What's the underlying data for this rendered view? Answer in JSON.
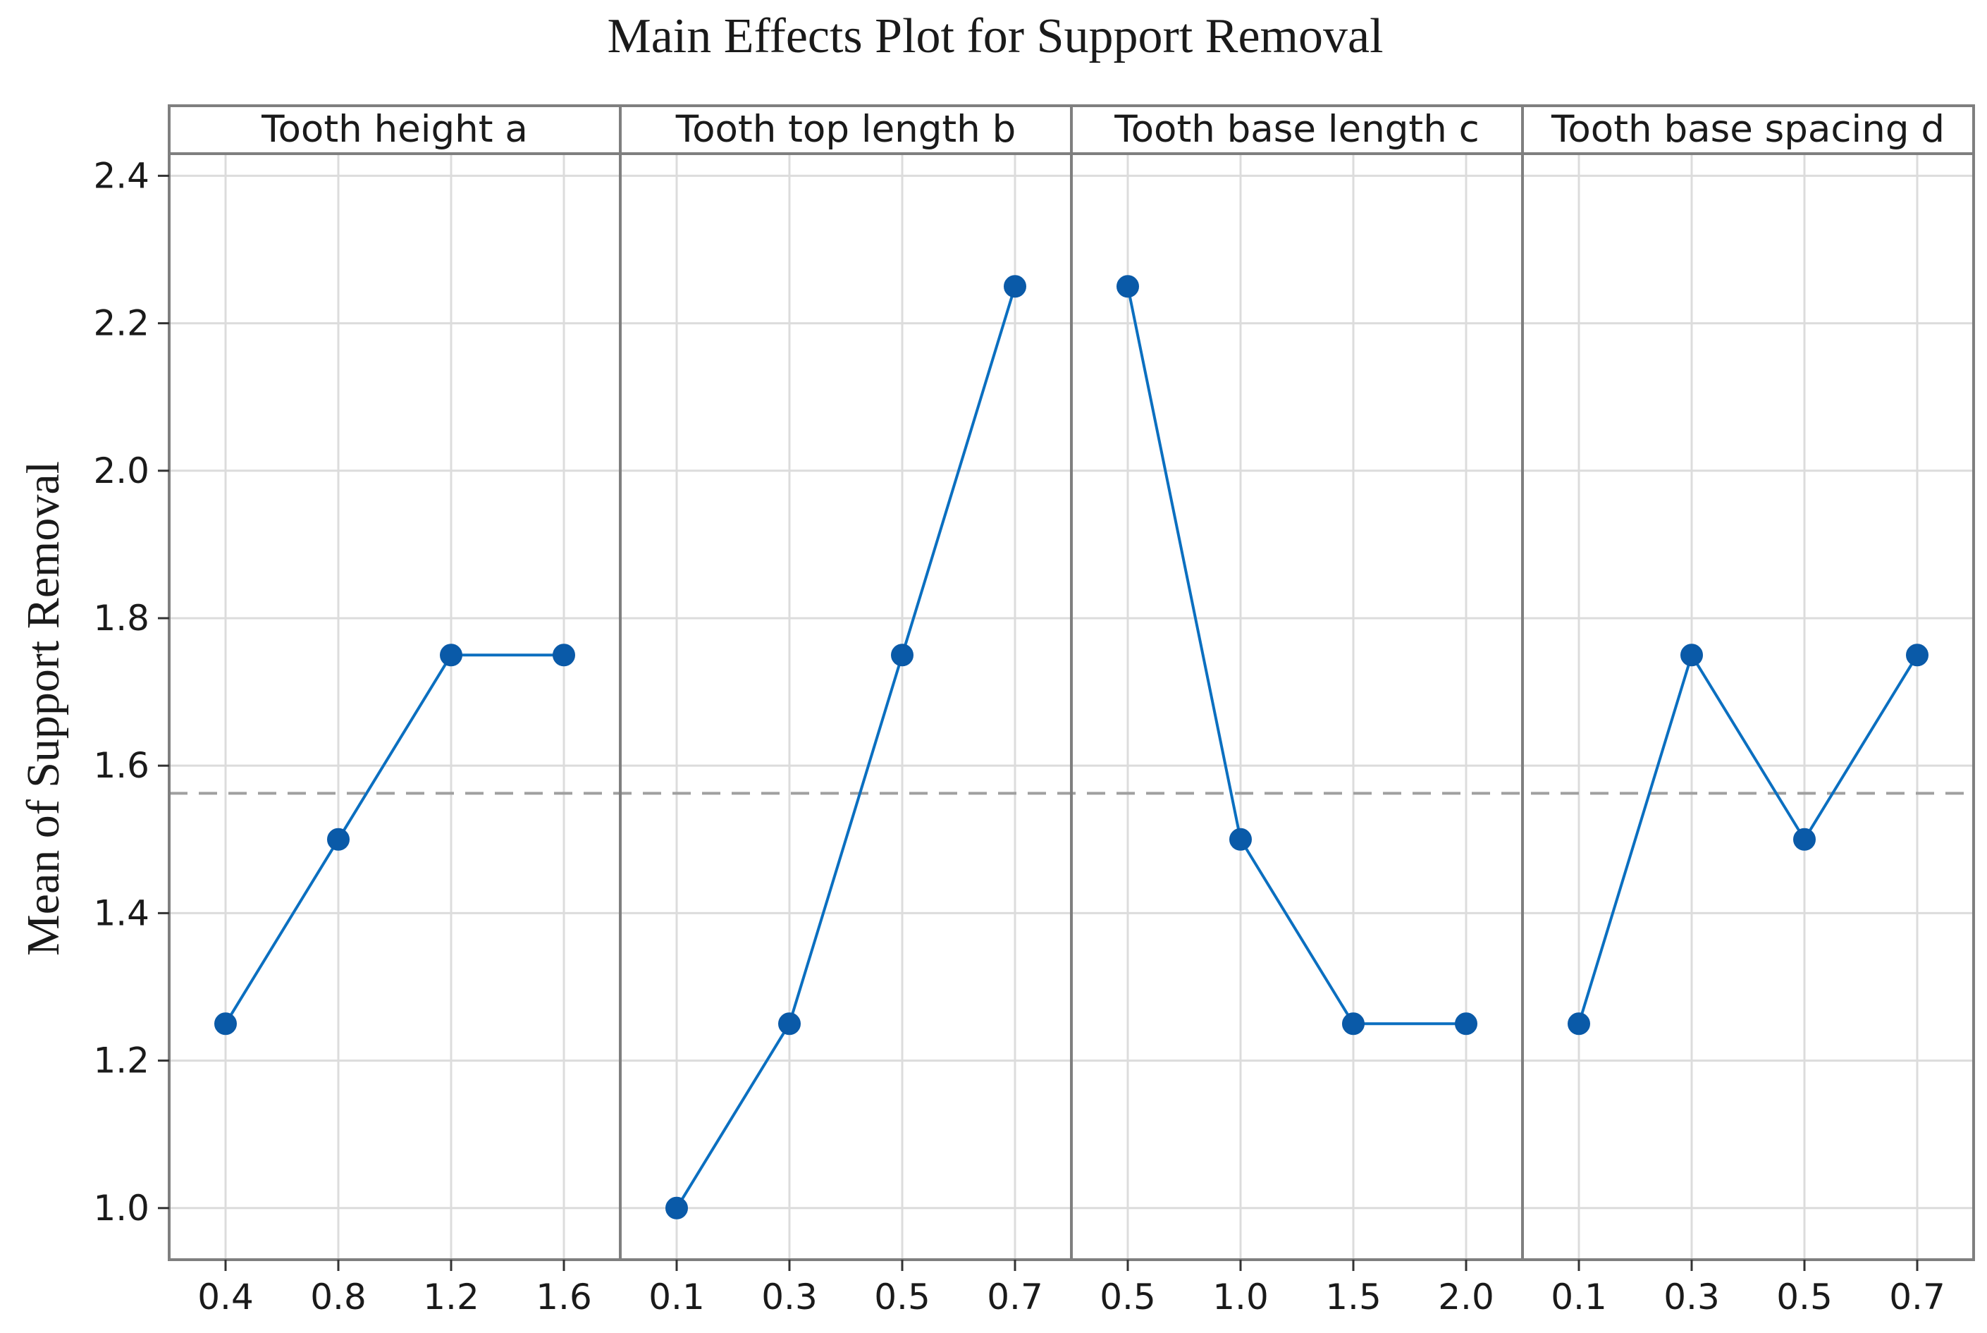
{
  "chart_data": {
    "type": "line",
    "title": "Main Effects Plot for Support Removal",
    "ylabel": "Mean of  Support Removal",
    "ylim": [
      0.93,
      2.43
    ],
    "yticks": [
      1.0,
      1.2,
      1.4,
      1.6,
      1.8,
      2.0,
      2.2,
      2.4
    ],
    "reference_line": {
      "value": 1.5625,
      "style": "dashed"
    },
    "grid": true,
    "colors": {
      "line": "#0b6fc0",
      "marker": "#0a5aa8",
      "reference": "#a0a0a0",
      "grid": "#dcdcdc",
      "frame": "#7f7f7f"
    },
    "panels": [
      {
        "name": "Tooth height a",
        "x": [
          "0.4",
          "0.8",
          "1.2",
          "1.6"
        ],
        "values": [
          1.25,
          1.5,
          1.75,
          1.75
        ]
      },
      {
        "name": "Tooth top length b",
        "x": [
          "0.1",
          "0.3",
          "0.5",
          "0.7"
        ],
        "values": [
          1.0,
          1.25,
          1.75,
          2.25
        ]
      },
      {
        "name": "Tooth base length c",
        "x": [
          "0.5",
          "1.0",
          "1.5",
          "2.0"
        ],
        "values": [
          2.25,
          1.5,
          1.25,
          1.25
        ]
      },
      {
        "name": "Tooth base spacing d",
        "x": [
          "0.1",
          "0.3",
          "0.5",
          "0.7"
        ],
        "values": [
          1.25,
          1.75,
          1.5,
          1.75
        ]
      }
    ]
  }
}
